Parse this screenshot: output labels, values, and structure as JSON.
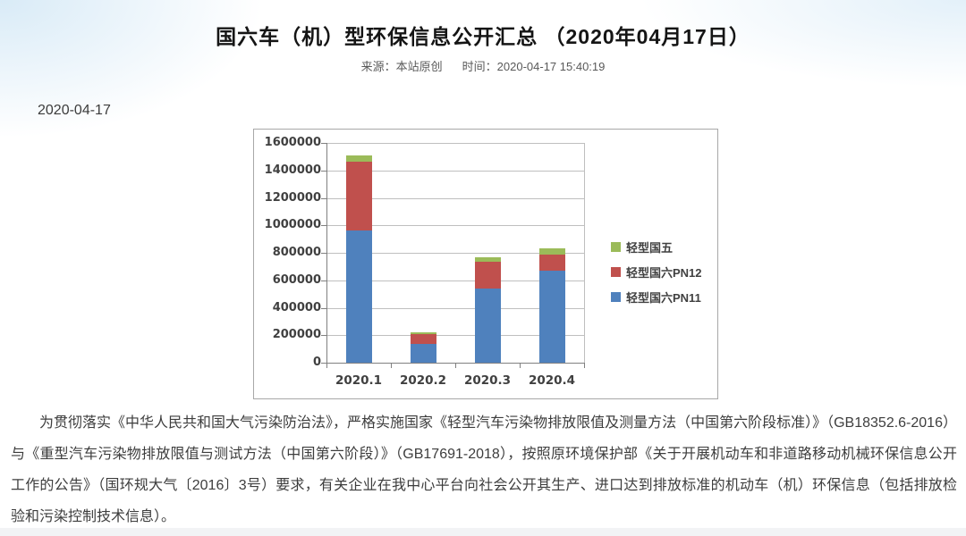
{
  "page": {
    "title": "国六车（机）型环保信息公开汇总 （2020年04月17日）",
    "meta": {
      "source_label": "来源：",
      "source_value": "本站原创",
      "time_label": "时间：",
      "time_value": "2020-04-17 15:40:19"
    },
    "article_date": "2020-04-17",
    "body_paragraph": "为贯彻落实《中华人民共和国大气污染防治法》，严格实施国家《轻型汽车污染物排放限值及测量方法（中国第六阶段标准）》（GB18352.6-2016）与《重型汽车污染物排放限值与测试方法（中国第六阶段）》（GB17691-2018），按照原环境保护部《关于开展机动车和非道路移动机械环保信息公开工作的公告》（国环规大气〔2016〕3号）要求，有关企业在我中心平台向社会公开其生产、进口达到排放标准的机动车（机）环保信息（包括排放检验和污染控制技术信息）。"
  },
  "chart_data": {
    "type": "bar",
    "stacked": true,
    "title": "",
    "xlabel": "",
    "ylabel": "",
    "categories": [
      "2020.1",
      "2020.2",
      "2020.3",
      "2020.4"
    ],
    "series": [
      {
        "name": "轻型国六PN11",
        "color": "#4F81BD",
        "values": [
          960000,
          135000,
          540000,
          670000
        ]
      },
      {
        "name": "轻型国六PN12",
        "color": "#C0504D",
        "values": [
          505000,
          75000,
          195000,
          115000
        ]
      },
      {
        "name": "轻型国五",
        "color": "#9BBB59",
        "values": [
          45000,
          8000,
          35000,
          45000
        ]
      }
    ],
    "ylim": [
      0,
      1600000
    ],
    "ytick_interval": 200000,
    "yticks": [
      0,
      200000,
      400000,
      600000,
      800000,
      1000000,
      1200000,
      1400000,
      1600000
    ],
    "grid": true,
    "legend_position": "right",
    "legend_order_top_to_bottom": [
      "轻型国五",
      "轻型国六PN12",
      "轻型国六PN11"
    ],
    "colors": {
      "grid": "#bfbfbf",
      "axis": "#808080",
      "tick_text": "#404040"
    }
  }
}
